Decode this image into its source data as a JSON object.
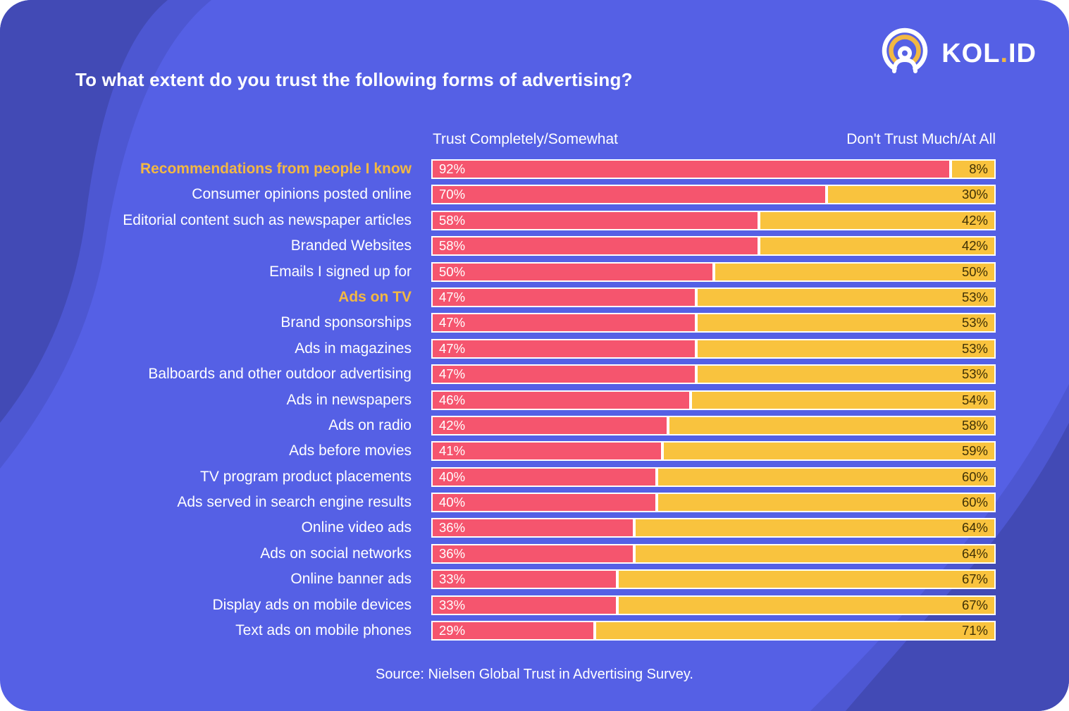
{
  "logo": {
    "brand_primary": "KOL",
    "brand_dot": ".",
    "brand_secondary": "ID",
    "icon": "broadcast-person-icon"
  },
  "title": "To what extent do you trust the following forms of advertising?",
  "columns": {
    "trust_header": "Trust Completely/Somewhat",
    "distrust_header": "Don't Trust Much/At All"
  },
  "source": "Source: Nielsen Global Trust in Advertising Survey.",
  "colors": {
    "bg": "#5560E5",
    "bg-dark": "#414AB3",
    "corner": "#FFFFFF",
    "pink": "#F5556E",
    "yellow": "#F9C33E",
    "accent-yellow": "#F2B843",
    "bar-border": "#FFFFFF",
    "dark-text": "#3F3005",
    "text": "#FFFFFF"
  },
  "chart_data": {
    "type": "bar",
    "orientation": "horizontal",
    "stacked": true,
    "unit": "percent",
    "x_range": [
      0,
      100
    ],
    "legend_position": "top (as column headers)",
    "grid": false,
    "series_names": [
      "Trust Completely/Somewhat",
      "Don't Trust Much/At All"
    ],
    "rows": [
      {
        "label": "Recommendations from people I know",
        "trust": 92,
        "trust_label": "92%",
        "distrust": 8,
        "distrust_label": "8%",
        "highlight": true
      },
      {
        "label": "Consumer opinions posted online",
        "trust": 70,
        "trust_label": "70%",
        "distrust": 30,
        "distrust_label": "30%",
        "highlight": false
      },
      {
        "label": "Editorial content such as newspaper articles",
        "trust": 58,
        "trust_label": "58%",
        "distrust": 42,
        "distrust_label": "42%",
        "highlight": false
      },
      {
        "label": "Branded Websites",
        "trust": 58,
        "trust_label": "58%",
        "distrust": 42,
        "distrust_label": "42%",
        "highlight": false
      },
      {
        "label": "Emails I signed up for",
        "trust": 50,
        "trust_label": "50%",
        "distrust": 50,
        "distrust_label": "50%",
        "highlight": false
      },
      {
        "label": "Ads on TV",
        "trust": 47,
        "trust_label": "47%",
        "distrust": 53,
        "distrust_label": "53%",
        "highlight": true
      },
      {
        "label": "Brand sponsorships",
        "trust": 47,
        "trust_label": "47%",
        "distrust": 53,
        "distrust_label": "53%",
        "highlight": false
      },
      {
        "label": "Ads in magazines",
        "trust": 47,
        "trust_label": "47%",
        "distrust": 53,
        "distrust_label": "53%",
        "highlight": false
      },
      {
        "label": "Balboards and other outdoor advertising",
        "trust": 47,
        "trust_label": "47%",
        "distrust": 53,
        "distrust_label": "53%",
        "highlight": false
      },
      {
        "label": "Ads in newspapers",
        "trust": 46,
        "trust_label": "46%",
        "distrust": 54,
        "distrust_label": "54%",
        "highlight": false
      },
      {
        "label": "Ads on radio",
        "trust": 42,
        "trust_label": "42%",
        "distrust": 58,
        "distrust_label": "58%",
        "highlight": false
      },
      {
        "label": "Ads before movies",
        "trust": 41,
        "trust_label": "41%",
        "distrust": 59,
        "distrust_label": "59%",
        "highlight": false
      },
      {
        "label": "TV program product placements",
        "trust": 40,
        "trust_label": "40%",
        "distrust": 60,
        "distrust_label": "60%",
        "highlight": false
      },
      {
        "label": "Ads served in search engine results",
        "trust": 40,
        "trust_label": "40%",
        "distrust": 60,
        "distrust_label": "60%",
        "highlight": false
      },
      {
        "label": "Online video ads",
        "trust": 36,
        "trust_label": "36%",
        "distrust": 64,
        "distrust_label": "64%",
        "highlight": false
      },
      {
        "label": "Ads on social networks",
        "trust": 36,
        "trust_label": "36%",
        "distrust": 64,
        "distrust_label": "64%",
        "highlight": false
      },
      {
        "label": "Online banner ads",
        "trust": 33,
        "trust_label": "33%",
        "distrust": 67,
        "distrust_label": "67%",
        "highlight": false
      },
      {
        "label": "Display ads on mobile devices",
        "trust": 33,
        "trust_label": "33%",
        "distrust": 67,
        "distrust_label": "67%",
        "highlight": false
      },
      {
        "label": "Text ads on mobile phones",
        "trust": 29,
        "trust_label": "29%",
        "distrust": 71,
        "distrust_label": "71%",
        "highlight": false
      }
    ]
  }
}
